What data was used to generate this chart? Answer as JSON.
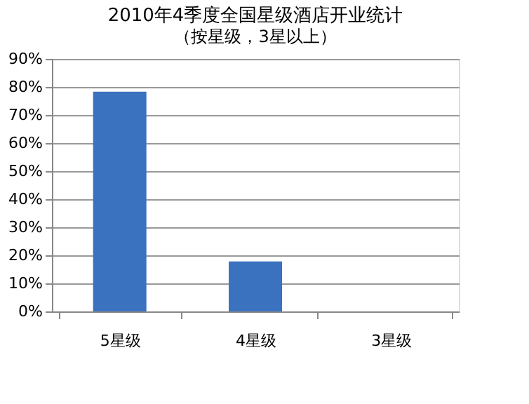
{
  "chart_data": {
    "type": "bar",
    "title": "2010年4季度全国星级酒店开业统计",
    "subtitle": "（按星级，3星以上）",
    "categories": [
      "5星级",
      "4星级",
      "3星级"
    ],
    "values": [
      78.3,
      17.8,
      0
    ],
    "color": "#3a72c0",
    "ylim": [
      0,
      90
    ],
    "yticks": [
      {
        "value": 0,
        "label": "0%"
      },
      {
        "value": 10,
        "label": "10%"
      },
      {
        "value": 20,
        "label": "20%"
      },
      {
        "value": 30,
        "label": "30%"
      },
      {
        "value": 40,
        "label": "40%"
      },
      {
        "value": 50,
        "label": "50%"
      },
      {
        "value": 60,
        "label": "60%"
      },
      {
        "value": 70,
        "label": "70%"
      },
      {
        "value": 80,
        "label": "80%"
      },
      {
        "value": 90,
        "label": "90%"
      }
    ],
    "grid": "y"
  }
}
